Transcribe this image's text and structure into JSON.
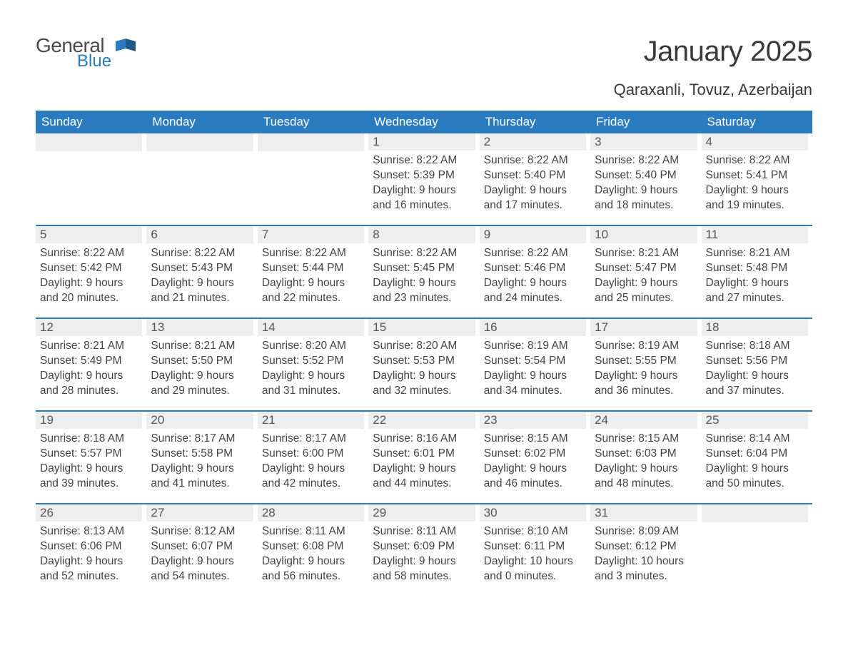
{
  "logo": {
    "general": "General",
    "blue": "Blue"
  },
  "title": "January 2025",
  "location": "Qaraxanli, Tovuz, Azerbaijan",
  "colors": {
    "header_bg": "#2a7bbf",
    "header_text": "#ffffff",
    "daynum_bg": "#eeeeee",
    "body_text": "#444444",
    "page_bg": "#ffffff",
    "row_border": "#2a7bbf"
  },
  "weekdays": [
    "Sunday",
    "Monday",
    "Tuesday",
    "Wednesday",
    "Thursday",
    "Friday",
    "Saturday"
  ],
  "weeks": [
    [
      {
        "day": "",
        "lines": []
      },
      {
        "day": "",
        "lines": []
      },
      {
        "day": "",
        "lines": []
      },
      {
        "day": "1",
        "lines": [
          "Sunrise: 8:22 AM",
          "Sunset: 5:39 PM",
          "Daylight: 9 hours and 16 minutes."
        ]
      },
      {
        "day": "2",
        "lines": [
          "Sunrise: 8:22 AM",
          "Sunset: 5:40 PM",
          "Daylight: 9 hours and 17 minutes."
        ]
      },
      {
        "day": "3",
        "lines": [
          "Sunrise: 8:22 AM",
          "Sunset: 5:40 PM",
          "Daylight: 9 hours and 18 minutes."
        ]
      },
      {
        "day": "4",
        "lines": [
          "Sunrise: 8:22 AM",
          "Sunset: 5:41 PM",
          "Daylight: 9 hours and 19 minutes."
        ]
      }
    ],
    [
      {
        "day": "5",
        "lines": [
          "Sunrise: 8:22 AM",
          "Sunset: 5:42 PM",
          "Daylight: 9 hours and 20 minutes."
        ]
      },
      {
        "day": "6",
        "lines": [
          "Sunrise: 8:22 AM",
          "Sunset: 5:43 PM",
          "Daylight: 9 hours and 21 minutes."
        ]
      },
      {
        "day": "7",
        "lines": [
          "Sunrise: 8:22 AM",
          "Sunset: 5:44 PM",
          "Daylight: 9 hours and 22 minutes."
        ]
      },
      {
        "day": "8",
        "lines": [
          "Sunrise: 8:22 AM",
          "Sunset: 5:45 PM",
          "Daylight: 9 hours and 23 minutes."
        ]
      },
      {
        "day": "9",
        "lines": [
          "Sunrise: 8:22 AM",
          "Sunset: 5:46 PM",
          "Daylight: 9 hours and 24 minutes."
        ]
      },
      {
        "day": "10",
        "lines": [
          "Sunrise: 8:21 AM",
          "Sunset: 5:47 PM",
          "Daylight: 9 hours and 25 minutes."
        ]
      },
      {
        "day": "11",
        "lines": [
          "Sunrise: 8:21 AM",
          "Sunset: 5:48 PM",
          "Daylight: 9 hours and 27 minutes."
        ]
      }
    ],
    [
      {
        "day": "12",
        "lines": [
          "Sunrise: 8:21 AM",
          "Sunset: 5:49 PM",
          "Daylight: 9 hours and 28 minutes."
        ]
      },
      {
        "day": "13",
        "lines": [
          "Sunrise: 8:21 AM",
          "Sunset: 5:50 PM",
          "Daylight: 9 hours and 29 minutes."
        ]
      },
      {
        "day": "14",
        "lines": [
          "Sunrise: 8:20 AM",
          "Sunset: 5:52 PM",
          "Daylight: 9 hours and 31 minutes."
        ]
      },
      {
        "day": "15",
        "lines": [
          "Sunrise: 8:20 AM",
          "Sunset: 5:53 PM",
          "Daylight: 9 hours and 32 minutes."
        ]
      },
      {
        "day": "16",
        "lines": [
          "Sunrise: 8:19 AM",
          "Sunset: 5:54 PM",
          "Daylight: 9 hours and 34 minutes."
        ]
      },
      {
        "day": "17",
        "lines": [
          "Sunrise: 8:19 AM",
          "Sunset: 5:55 PM",
          "Daylight: 9 hours and 36 minutes."
        ]
      },
      {
        "day": "18",
        "lines": [
          "Sunrise: 8:18 AM",
          "Sunset: 5:56 PM",
          "Daylight: 9 hours and 37 minutes."
        ]
      }
    ],
    [
      {
        "day": "19",
        "lines": [
          "Sunrise: 8:18 AM",
          "Sunset: 5:57 PM",
          "Daylight: 9 hours and 39 minutes."
        ]
      },
      {
        "day": "20",
        "lines": [
          "Sunrise: 8:17 AM",
          "Sunset: 5:58 PM",
          "Daylight: 9 hours and 41 minutes."
        ]
      },
      {
        "day": "21",
        "lines": [
          "Sunrise: 8:17 AM",
          "Sunset: 6:00 PM",
          "Daylight: 9 hours and 42 minutes."
        ]
      },
      {
        "day": "22",
        "lines": [
          "Sunrise: 8:16 AM",
          "Sunset: 6:01 PM",
          "Daylight: 9 hours and 44 minutes."
        ]
      },
      {
        "day": "23",
        "lines": [
          "Sunrise: 8:15 AM",
          "Sunset: 6:02 PM",
          "Daylight: 9 hours and 46 minutes."
        ]
      },
      {
        "day": "24",
        "lines": [
          "Sunrise: 8:15 AM",
          "Sunset: 6:03 PM",
          "Daylight: 9 hours and 48 minutes."
        ]
      },
      {
        "day": "25",
        "lines": [
          "Sunrise: 8:14 AM",
          "Sunset: 6:04 PM",
          "Daylight: 9 hours and 50 minutes."
        ]
      }
    ],
    [
      {
        "day": "26",
        "lines": [
          "Sunrise: 8:13 AM",
          "Sunset: 6:06 PM",
          "Daylight: 9 hours and 52 minutes."
        ]
      },
      {
        "day": "27",
        "lines": [
          "Sunrise: 8:12 AM",
          "Sunset: 6:07 PM",
          "Daylight: 9 hours and 54 minutes."
        ]
      },
      {
        "day": "28",
        "lines": [
          "Sunrise: 8:11 AM",
          "Sunset: 6:08 PM",
          "Daylight: 9 hours and 56 minutes."
        ]
      },
      {
        "day": "29",
        "lines": [
          "Sunrise: 8:11 AM",
          "Sunset: 6:09 PM",
          "Daylight: 9 hours and 58 minutes."
        ]
      },
      {
        "day": "30",
        "lines": [
          "Sunrise: 8:10 AM",
          "Sunset: 6:11 PM",
          "Daylight: 10 hours and 0 minutes."
        ]
      },
      {
        "day": "31",
        "lines": [
          "Sunrise: 8:09 AM",
          "Sunset: 6:12 PM",
          "Daylight: 10 hours and 3 minutes."
        ]
      },
      {
        "day": "",
        "lines": []
      }
    ]
  ]
}
